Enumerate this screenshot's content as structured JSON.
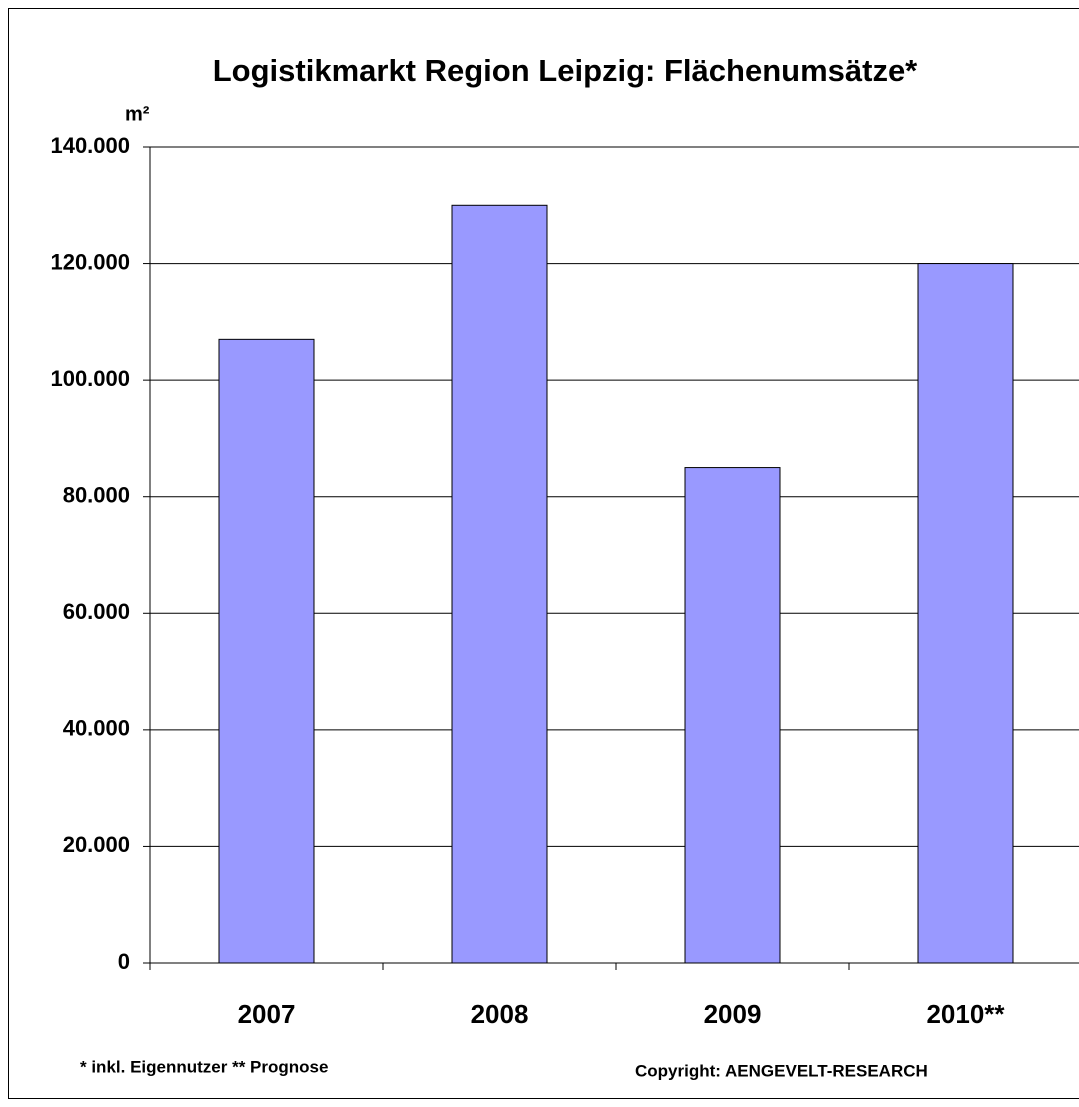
{
  "chart_data": {
    "type": "bar",
    "title": "Logistikmarkt Region Leipzig: Flächenumsätze*",
    "y_label": "m²",
    "categories": [
      "2007",
      "2008",
      "2009",
      "2010**"
    ],
    "values": [
      107000,
      130000,
      85000,
      120000
    ],
    "color": "#9999ff",
    "ylim": [
      0,
      140000
    ],
    "yticks": [
      0,
      {
        "value": 20000,
        "label": "20.000"
      },
      {
        "value": 40000,
        "label": "40.000"
      },
      {
        "value": 60000,
        "label": "60.000"
      },
      {
        "value": 80000,
        "label": "80.000"
      },
      {
        "value": 100000,
        "label": "100.000"
      },
      {
        "value": 120000,
        "label": "120.000"
      },
      {
        "value": 140000,
        "label": "140.000"
      }
    ],
    "grid": true,
    "footnote": "* inkl. Eigennutzer  ** Prognose",
    "copyright": "Copyright: AENGEVELT-RESEARCH"
  }
}
